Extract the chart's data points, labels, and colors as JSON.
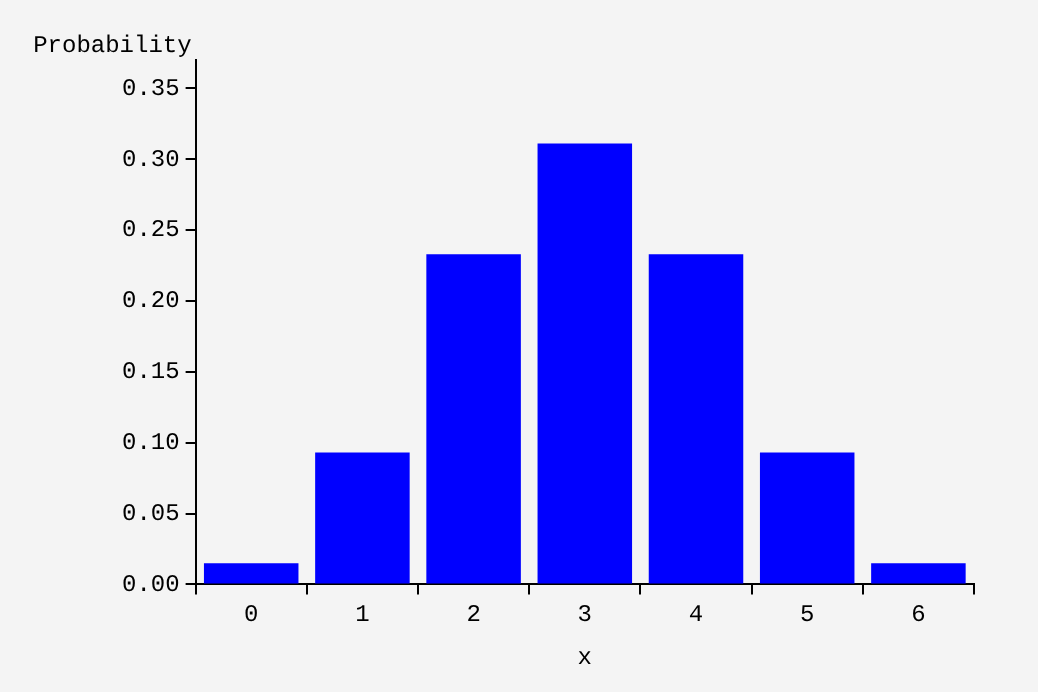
{
  "chart_data": {
    "type": "bar",
    "xlabel": "x",
    "ylabel": "Probability",
    "categories": [
      "0",
      "1",
      "2",
      "3",
      "4",
      "5",
      "6"
    ],
    "values": [
      0.015,
      0.093,
      0.233,
      0.311,
      0.233,
      0.093,
      0.015
    ],
    "color": "#0000ff",
    "ylim": [
      0,
      0.37
    ],
    "yticks": [
      {
        "value": 0,
        "label": "0.00"
      },
      {
        "value": 0.05,
        "label": "0.05"
      },
      {
        "value": 0.1,
        "label": "0.10"
      },
      {
        "value": 0.15,
        "label": "0.15"
      },
      {
        "value": 0.2,
        "label": "0.20"
      },
      {
        "value": 0.25,
        "label": "0.25"
      },
      {
        "value": 0.3,
        "label": "0.30"
      },
      {
        "value": 0.35,
        "label": "0.35"
      }
    ],
    "grid": false,
    "legend": false
  }
}
